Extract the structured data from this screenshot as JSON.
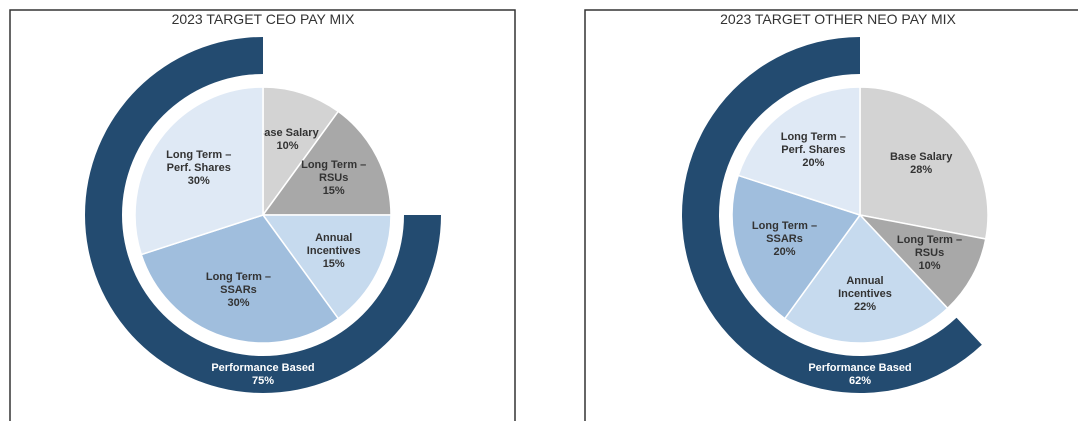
{
  "chart_data": [
    {
      "type": "pie",
      "title": "2023 TARGET CEO PAY MIX",
      "categories": [
        "Base Salary",
        "Long Term – RSUs",
        "Annual Incentives",
        "Long Term – SSARs",
        "Long Term – Perf. Shares"
      ],
      "values": [
        10,
        15,
        15,
        30,
        30
      ],
      "value_labels": [
        "10%",
        "15%",
        "15%",
        "30%",
        "30%"
      ],
      "colors": [
        "#d3d3d3",
        "#a8a8a8",
        "#c6daee",
        "#a0bedd",
        "#dfe9f5"
      ],
      "outer": {
        "name": "Performance Based",
        "value": 75,
        "value_label": "75%",
        "color": "#234b70"
      }
    },
    {
      "type": "pie",
      "title": "2023 TARGET OTHER NEO PAY MIX",
      "categories": [
        "Base Salary",
        "Long Term – RSUs",
        "Annual Incentives",
        "Long Term – SSARs",
        "Long Term – Perf. Shares"
      ],
      "values": [
        28,
        10,
        22,
        20,
        20
      ],
      "value_labels": [
        "28%",
        "10%",
        "22%",
        "20%",
        "20%"
      ],
      "colors": [
        "#d3d3d3",
        "#a8a8a8",
        "#c6daee",
        "#a0bedd",
        "#dfe9f5"
      ],
      "outer": {
        "name": "Performance Based",
        "value": 62,
        "value_label": "62%",
        "color": "#234b70"
      }
    }
  ]
}
